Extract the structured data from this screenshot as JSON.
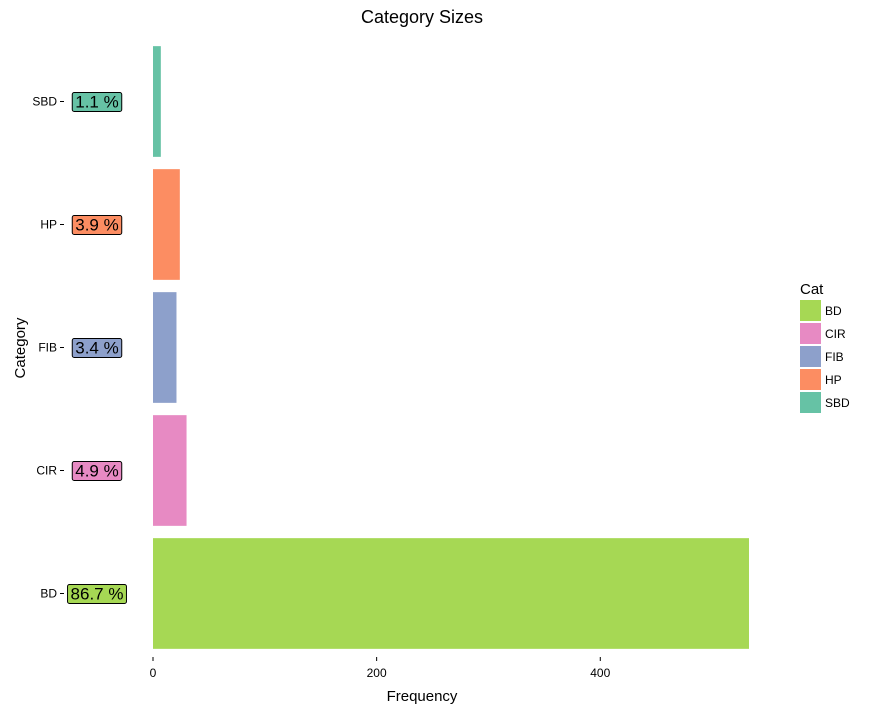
{
  "chart_data": {
    "type": "bar",
    "orientation": "horizontal",
    "title": "Category Sizes",
    "xlabel": "Frequency",
    "ylabel": "Category",
    "categories": [
      "BD",
      "CIR",
      "FIB",
      "HP",
      "SBD"
    ],
    "values": [
      533,
      30,
      21,
      24,
      7
    ],
    "percent_labels": [
      "86.7 %",
      "4.9 %",
      "3.4 %",
      "3.9 %",
      "1.1 %"
    ],
    "colors": [
      "#A6D854",
      "#E78AC3",
      "#8DA0CB",
      "#FC8D62",
      "#66C2A5"
    ],
    "xlim": [
      0,
      533
    ],
    "xticks": [
      0,
      200,
      400
    ],
    "grid": false,
    "legend": {
      "title": "Cat",
      "placement": "right",
      "entries": [
        "BD",
        "CIR",
        "FIB",
        "HP",
        "SBD"
      ]
    }
  }
}
